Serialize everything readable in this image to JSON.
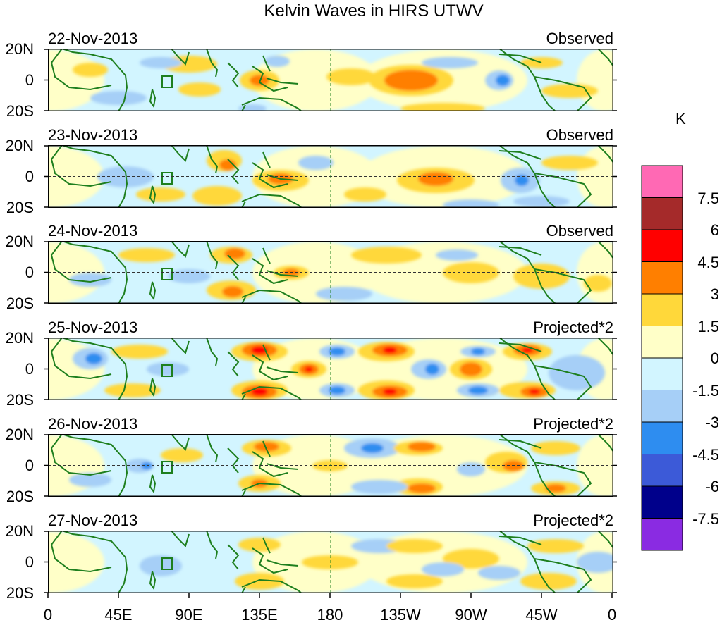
{
  "title": "Kelvin Waves in HIRS UTWV",
  "panels": [
    {
      "date": "22-Nov-2013",
      "label": "Observed"
    },
    {
      "date": "23-Nov-2013",
      "label": "Observed"
    },
    {
      "date": "24-Nov-2013",
      "label": "Observed"
    },
    {
      "date": "25-Nov-2013",
      "label": "Projected*2"
    },
    {
      "date": "26-Nov-2013",
      "label": "Projected*2"
    },
    {
      "date": "27-Nov-2013",
      "label": "Projected*2"
    }
  ],
  "lat_ticks": [
    "20N",
    "0",
    "20S"
  ],
  "lon_ticks": [
    "0",
    "45E",
    "90E",
    "135E",
    "180",
    "135W",
    "90W",
    "45W",
    "0"
  ],
  "colorbar": {
    "unit": "K",
    "labels": [
      "7.5",
      "6",
      "4.5",
      "3",
      "1.5",
      "0",
      "-1.5",
      "-3",
      "-4.5",
      "-6",
      "-7.5"
    ],
    "colors": [
      "#ff69b4",
      "#a52a2a",
      "#ff0000",
      "#ff7f00",
      "#ffd83a",
      "#ffffc8",
      "#d2f5ff",
      "#a6cff7",
      "#2e8df0",
      "#3c5ad8",
      "#00008b",
      "#8a2be2"
    ]
  },
  "field_colors": {
    "strong_pos": "#ff0000",
    "pos3": "#ff7f00",
    "pos15": "#ffd83a",
    "pos0": "#ffffc8",
    "neg0": "#d2f5ff",
    "neg15": "#a6cff7",
    "neg3": "#2e8df0",
    "neg45": "#3c5ad8",
    "coast": "#1e7f1e"
  }
}
